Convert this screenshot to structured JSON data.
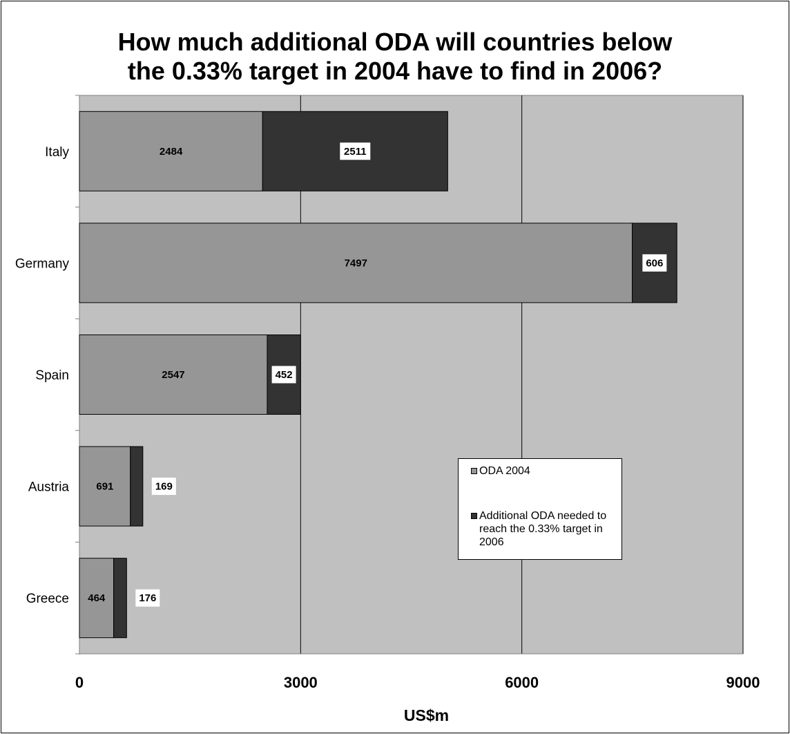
{
  "chart_data": {
    "type": "bar",
    "orientation": "horizontal",
    "stacked": true,
    "title": "How much additional ODA will countries below the 0.33% target in 2004 have to find in 2006?",
    "title_lines": [
      "How much additional ODA will countries below",
      "the 0.33% target in 2004 have to find in 2006?"
    ],
    "categories": [
      "Italy",
      "Germany",
      "Spain",
      "Austria",
      "Greece"
    ],
    "series": [
      {
        "name": "ODA 2004",
        "values": [
          2484,
          7497,
          2547,
          691,
          464
        ],
        "color": "#969696",
        "label_style": "inside"
      },
      {
        "name": "Additional ODA needed to reach the 0.33% target in 2006",
        "values": [
          2511,
          606,
          452,
          169,
          176
        ],
        "color": "#333333",
        "label_style": "boxed"
      }
    ],
    "xlabel": "US$m",
    "ylabel": "",
    "xlim": [
      0,
      9000
    ],
    "xticks": [
      0,
      3000,
      6000,
      9000
    ],
    "grid": "vertical",
    "plot_background": "#c0c0c0",
    "legend_position": "lower-right",
    "legend_lines": [
      [
        "ODA 2004"
      ],
      [
        "Additional ODA needed to",
        "reach the 0.33% target in",
        "2006"
      ]
    ]
  }
}
